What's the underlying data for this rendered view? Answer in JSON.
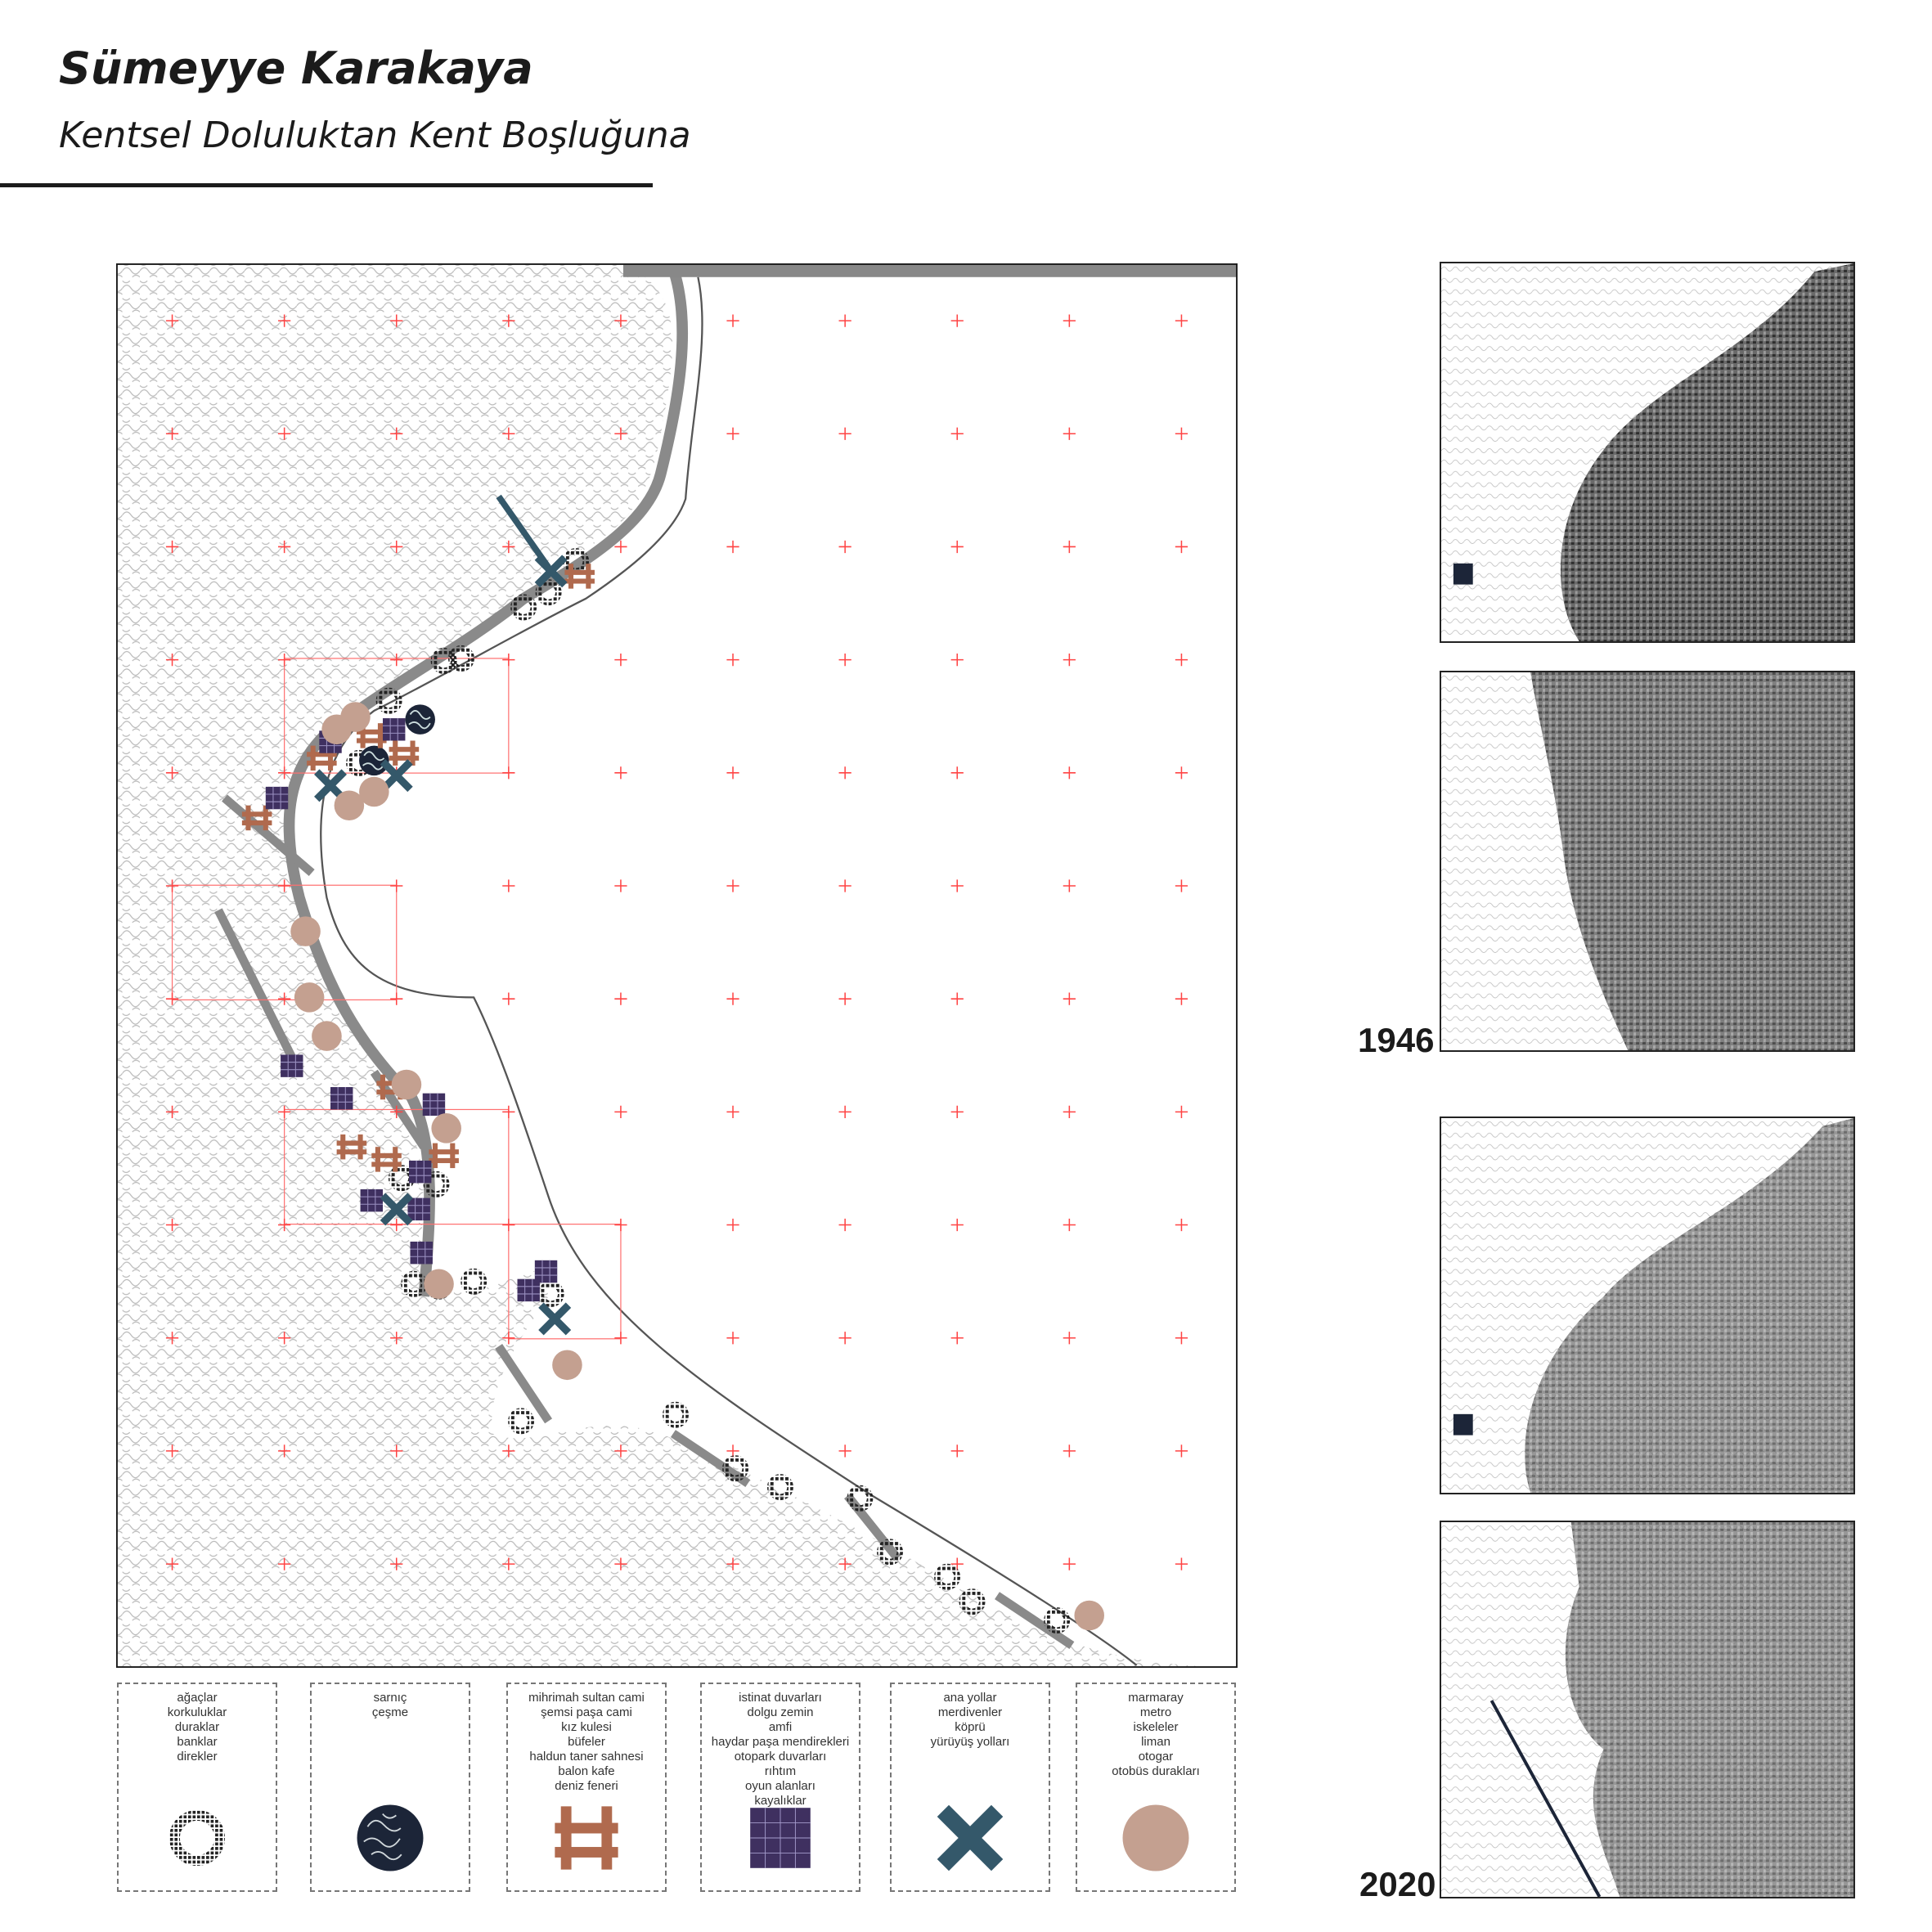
{
  "header": {
    "author": "Sümeyye Karakaya",
    "subtitle": "Kentsel Doluluktan Kent Boşluğuna"
  },
  "colors": {
    "tree_ring": "#222222",
    "cistern": "#1c2538",
    "landmark": "#b06a4e",
    "wall_grid": "#3f3060",
    "road_cross": "#34586a",
    "transport_circle": "#c4a090",
    "grid_plus": "#ff4444",
    "coast_strip": "#8a8a8a"
  },
  "legend": [
    {
      "icon": "dotted-ring-icon",
      "items": [
        "ağaçlar",
        "korkuluklar",
        "duraklar",
        "banklar",
        "direkler"
      ]
    },
    {
      "icon": "contour-circle-icon",
      "items": [
        "sarnıç",
        "çeşme"
      ]
    },
    {
      "icon": "hash-frame-icon",
      "items": [
        "mihrimah sultan cami",
        "şemsi paşa cami",
        "kız kulesi",
        "büfeler",
        "haldun taner sahnesi",
        "balon kafe",
        "deniz feneri"
      ]
    },
    {
      "icon": "grid-square-icon",
      "items": [
        "istinat duvarları",
        "dolgu zemin",
        "amfi",
        "haydar paşa mendirekleri",
        "otopark duvarları",
        "rıhtım",
        "oyun alanları",
        "kayalıklar"
      ]
    },
    {
      "icon": "x-cross-icon",
      "items": [
        "ana yollar",
        "merdivenler",
        "köprü",
        "yürüyüş yolları"
      ]
    },
    {
      "icon": "filled-circle-icon",
      "items": [
        "marmaray",
        "metro",
        "iskeleler",
        "liman",
        "otogar",
        "otobüs durakları"
      ]
    }
  ],
  "timeline": {
    "year_1": "1946",
    "year_2": "2020"
  }
}
